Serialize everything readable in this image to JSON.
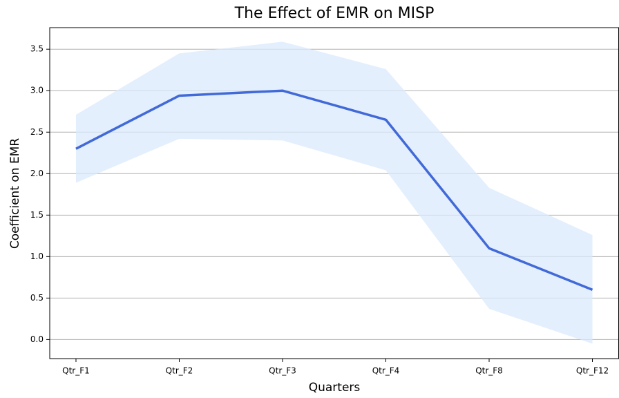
{
  "chart_data": {
    "type": "line",
    "title": "The Effect of EMR on MISP",
    "x_label": "Quarters",
    "y_label": "Coefficient on EMR",
    "categories": [
      "Qtr_F1",
      "Qtr_F2",
      "Qtr_F3",
      "Qtr_F4",
      "Qtr_F8",
      "Qtr_F12"
    ],
    "values": [
      2.3,
      2.94,
      3.0,
      2.65,
      1.1,
      0.6
    ],
    "lower": [
      1.89,
      2.42,
      2.4,
      2.04,
      0.37,
      -0.05
    ],
    "upper": [
      2.71,
      3.45,
      3.59,
      3.26,
      1.83,
      1.26
    ],
    "color": "#4169d8",
    "band_color": "#dbe9fc",
    "ylim": [
      -0.23,
      3.76
    ],
    "yticks": [
      {
        "value": 0,
        "label": "0.0"
      },
      0.5,
      {
        "value": 1,
        "label": "1.0"
      },
      1.5,
      {
        "value": 2,
        "label": "2.0"
      },
      2.5,
      {
        "value": 3,
        "label": "3.0"
      },
      3.5
    ],
    "grid": true
  }
}
